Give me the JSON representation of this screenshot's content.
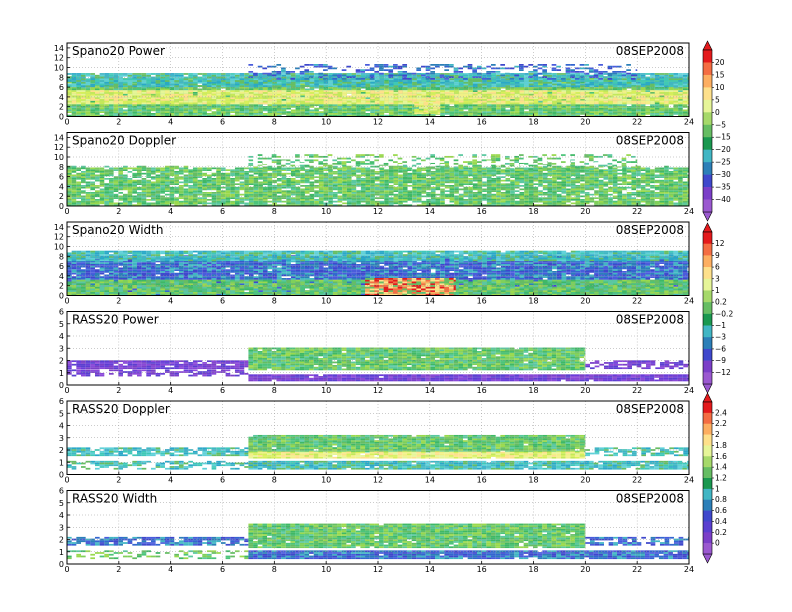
{
  "chart_data": [
    {
      "type": "heatmap",
      "title": "Spano20 Power",
      "date": "08SEP2008",
      "x": [
        0,
        2,
        4,
        6,
        8,
        10,
        12,
        14,
        16,
        18,
        20,
        22,
        24
      ],
      "y": [
        0,
        2,
        4,
        6,
        8,
        10,
        12,
        14
      ],
      "xlim": [
        0,
        24
      ],
      "ylim": [
        0,
        15
      ],
      "colorbar": "power",
      "grid": true,
      "regions": [
        {
          "from": 0,
          "to": 24,
          "top": 7.8,
          "palette": "green"
        },
        {
          "from": 0,
          "to": 24,
          "ymin": 2.5,
          "ymax": 5,
          "palette": "yellow"
        },
        {
          "from": 0,
          "to": 24,
          "ymin": 6,
          "ymax": 8.5,
          "palette": "cyan"
        },
        {
          "from": 7,
          "to": 22,
          "ymin": 7.5,
          "ymax": 10.5,
          "palette": "blue",
          "density": 0.35
        },
        {
          "from": 13.4,
          "to": 14.4,
          "ymin": 0.5,
          "ymax": 3,
          "palette": "yellow"
        }
      ]
    },
    {
      "type": "heatmap",
      "title": "Spano20 Doppler",
      "date": "08SEP2008",
      "x": [
        0,
        2,
        4,
        6,
        8,
        10,
        12,
        14,
        16,
        18,
        20,
        22,
        24
      ],
      "y": [
        0,
        2,
        4,
        6,
        8,
        10,
        12,
        14
      ],
      "xlim": [
        0,
        24
      ],
      "ylim": [
        0,
        15
      ],
      "colorbar": "power",
      "grid": true,
      "regions": [
        {
          "from": 0,
          "to": 24,
          "top": 7.8,
          "palette": "green"
        },
        {
          "from": 7,
          "to": 22,
          "ymin": 7,
          "ymax": 10.5,
          "palette": "green",
          "density": 0.4
        },
        {
          "from": 0,
          "to": 24,
          "ymin": 0,
          "ymax": 9,
          "palette": "white",
          "density": 0.08
        }
      ]
    },
    {
      "type": "heatmap",
      "title": "Spano20 Width",
      "date": "08SEP2008",
      "x": [
        0,
        2,
        4,
        6,
        8,
        10,
        12,
        14,
        16,
        18,
        20,
        22,
        24
      ],
      "y": [
        0,
        2,
        4,
        6,
        8,
        10,
        12,
        14
      ],
      "xlim": [
        0,
        24
      ],
      "ylim": [
        0,
        15
      ],
      "colorbar": "width",
      "grid": true,
      "regions": [
        {
          "from": 0,
          "to": 24,
          "top": 7.8,
          "palette": "blue"
        },
        {
          "from": 0,
          "to": 24,
          "ymin": 0,
          "ymax": 3,
          "palette": "green"
        },
        {
          "from": 0,
          "to": 24,
          "ymin": 7,
          "ymax": 9,
          "palette": "cyan"
        },
        {
          "from": 11.5,
          "to": 15,
          "ymin": 0,
          "ymax": 3.5,
          "palette": "hot"
        }
      ]
    },
    {
      "type": "heatmap",
      "title": "RASS20 Power",
      "date": "08SEP2008",
      "x": [
        0,
        2,
        4,
        6,
        8,
        10,
        12,
        14,
        16,
        18,
        20,
        22,
        24
      ],
      "y": [
        0,
        1,
        2,
        3,
        4,
        5,
        6
      ],
      "xlim": [
        0,
        24
      ],
      "ylim": [
        0,
        6
      ],
      "colorbar": "width",
      "grid": true,
      "regions": [
        {
          "from": 0,
          "to": 7,
          "ymin": 1.3,
          "ymax": 2.0,
          "palette": "violet",
          "density": 0.9
        },
        {
          "from": 0,
          "to": 7,
          "ymin": 0.7,
          "ymax": 1.2,
          "palette": "violet",
          "density": 0.6
        },
        {
          "from": 7,
          "to": 20,
          "ymin": 1.2,
          "ymax": 3.0,
          "palette": "green"
        },
        {
          "from": 7,
          "to": 24,
          "ymin": 0.3,
          "ymax": 0.8,
          "palette": "violet"
        },
        {
          "from": 20,
          "to": 24,
          "ymin": 1.3,
          "ymax": 2.0,
          "palette": "violet",
          "density": 0.6
        }
      ]
    },
    {
      "type": "heatmap",
      "title": "RASS20 Doppler",
      "date": "08SEP2008",
      "x": [
        0,
        2,
        4,
        6,
        8,
        10,
        12,
        14,
        16,
        18,
        20,
        22,
        24
      ],
      "y": [
        0,
        1,
        2,
        3,
        4,
        5,
        6
      ],
      "xlim": [
        0,
        24
      ],
      "ylim": [
        0,
        6
      ],
      "colorbar": "doppler",
      "grid": true,
      "regions": [
        {
          "from": 0,
          "to": 7,
          "ymin": 1.5,
          "ymax": 2.1,
          "palette": "cyan",
          "density": 0.8
        },
        {
          "from": 0,
          "to": 7,
          "ymin": 0.4,
          "ymax": 1.0,
          "palette": "cyan",
          "density": 0.5
        },
        {
          "from": 7,
          "to": 20,
          "ymin": 1.8,
          "ymax": 3.2,
          "palette": "green"
        },
        {
          "from": 7,
          "to": 20,
          "ymin": 1.3,
          "ymax": 1.8,
          "palette": "yellow"
        },
        {
          "from": 7,
          "to": 24,
          "ymin": 0.4,
          "ymax": 1.0,
          "palette": "cyan"
        },
        {
          "from": 20,
          "to": 24,
          "ymin": 1.5,
          "ymax": 2.1,
          "palette": "cyan",
          "density": 0.6
        }
      ]
    },
    {
      "type": "heatmap",
      "title": "RASS20 Width",
      "date": "08SEP2008",
      "x": [
        0,
        2,
        4,
        6,
        8,
        10,
        12,
        14,
        16,
        18,
        20,
        22,
        24
      ],
      "y": [
        0,
        1,
        2,
        3,
        4,
        5,
        6
      ],
      "xlim": [
        0,
        24
      ],
      "ylim": [
        0,
        6
      ],
      "colorbar": "doppler",
      "grid": true,
      "regions": [
        {
          "from": 0,
          "to": 7,
          "ymin": 1.5,
          "ymax": 2.1,
          "palette": "blue",
          "density": 0.8
        },
        {
          "from": 0,
          "to": 7,
          "ymin": 0.4,
          "ymax": 1.0,
          "palette": "green",
          "density": 0.4
        },
        {
          "from": 7,
          "to": 20,
          "ymin": 1.3,
          "ymax": 3.2,
          "palette": "green"
        },
        {
          "from": 7,
          "to": 24,
          "ymin": 0.4,
          "ymax": 1.0,
          "palette": "blue"
        },
        {
          "from": 20,
          "to": 24,
          "ymin": 1.5,
          "ymax": 2.1,
          "palette": "blue",
          "density": 0.6
        }
      ]
    }
  ],
  "colorbars": {
    "power": {
      "labels": [
        "20",
        "15",
        "10",
        "5",
        "0",
        "−5",
        "−15",
        "−20",
        "−25",
        "−30",
        "−35",
        "−40"
      ],
      "colors": [
        "#e41a1c",
        "#f46d43",
        "#fdae61",
        "#fee08b",
        "#e6f598",
        "#a6d96a",
        "#66bd63",
        "#1a9850",
        "#41b6c4",
        "#2c7fb8",
        "#3f48cc",
        "#7b3fc8",
        "#9b59d0"
      ]
    },
    "width": {
      "labels": [
        "12",
        "9",
        "6",
        "3",
        "1",
        "0.2",
        "−0.2",
        "−1",
        "−3",
        "−6",
        "−9",
        "−12"
      ],
      "colors": [
        "#e41a1c",
        "#f46d43",
        "#fdae61",
        "#fee08b",
        "#e6f598",
        "#a6d96a",
        "#66bd63",
        "#1a9850",
        "#41b6c4",
        "#2c7fb8",
        "#3f48cc",
        "#7b3fc8",
        "#9b59d0"
      ]
    },
    "doppler": {
      "labels": [
        "2.4",
        "2.2",
        "2",
        "1.8",
        "1.6",
        "1.4",
        "1.2",
        "1",
        "0.8",
        "0.6",
        "0.4",
        "0.2",
        "0"
      ],
      "colors": [
        "#e41a1c",
        "#f46d43",
        "#fdae61",
        "#fee08b",
        "#e6f598",
        "#a6d96a",
        "#66bd63",
        "#1a9850",
        "#41b6c4",
        "#2c7fb8",
        "#3f48cc",
        "#5a3fd0",
        "#7b3fc8",
        "#9b59d0"
      ]
    }
  },
  "palettes": {
    "green": [
      "#66bd63",
      "#7fd05a",
      "#4cc47a",
      "#3fb866",
      "#9ad94d",
      "#5ac8a0"
    ],
    "yellow": [
      "#e6f598",
      "#d8ef5a",
      "#f2f086",
      "#c4e85a",
      "#fee08b"
    ],
    "cyan": [
      "#41b6c4",
      "#3fc8b8",
      "#5fd0d8",
      "#2aa8c8",
      "#66bd63"
    ],
    "blue": [
      "#3f48cc",
      "#2c7fb8",
      "#4a5cdc",
      "#3366d0",
      "#41b6c4"
    ],
    "violet": [
      "#7b3fc8",
      "#6a3cd8",
      "#8a48d8",
      "#5a3fd0"
    ],
    "hot": [
      "#e41a1c",
      "#f46d43",
      "#fdae61",
      "#fee08b",
      "#66bd63"
    ],
    "white": [
      "#ffffff"
    ]
  }
}
